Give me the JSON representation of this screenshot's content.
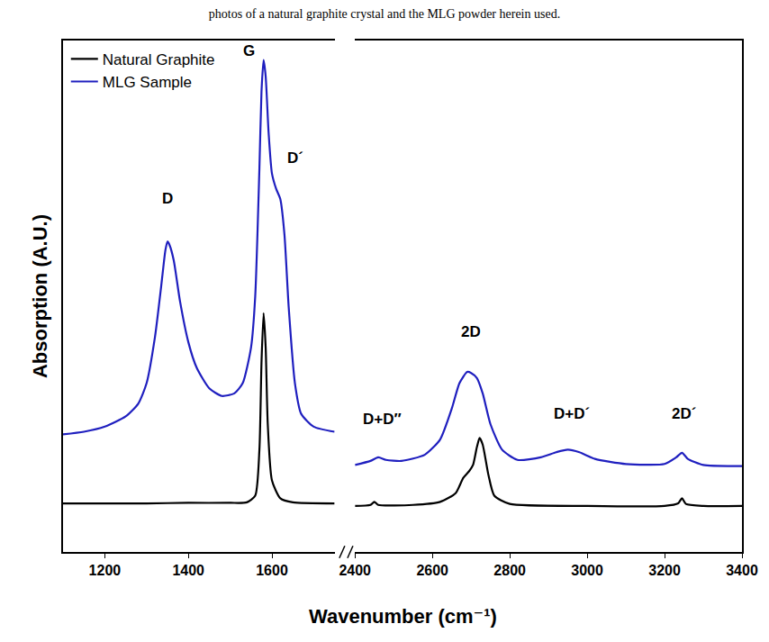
{
  "chart_data": {
    "type": "line",
    "title": "photos of a natural graphite crystal and the MLG powder herein used.",
    "x_label": "Wavenumber (cm⁻¹)",
    "y_label": "Absorption (A.U.)",
    "xlim": [
      [
        1100,
        1750
      ],
      [
        2400,
        3400
      ]
    ],
    "xticks": [
      [
        1200,
        1400,
        1600
      ],
      [
        2400,
        2600,
        2800,
        3000,
        3200,
        3400
      ]
    ],
    "ylim": [
      0,
      1
    ],
    "tick_labels": "x",
    "grid": false,
    "legend": "upper left",
    "series": [
      {
        "name": "Natural Graphite",
        "color": "#000000",
        "x": [
          1100,
          1200,
          1300,
          1400,
          1500,
          1540,
          1560,
          1570,
          1575,
          1580,
          1585,
          1590,
          1600,
          1620,
          1650,
          1750,
          2400,
          2440,
          2450,
          2460,
          2550,
          2620,
          2660,
          2680,
          2695,
          2705,
          2715,
          2722,
          2730,
          2745,
          2760,
          2800,
          3000,
          3200,
          3235,
          3245,
          3255,
          3300,
          3400
        ],
        "values": [
          0.095,
          0.095,
          0.095,
          0.096,
          0.096,
          0.097,
          0.11,
          0.2,
          0.37,
          0.467,
          0.4,
          0.25,
          0.14,
          0.105,
          0.097,
          0.095,
          0.09,
          0.092,
          0.098,
          0.092,
          0.092,
          0.098,
          0.115,
          0.145,
          0.158,
          0.17,
          0.205,
          0.223,
          0.21,
          0.15,
          0.11,
          0.094,
          0.09,
          0.09,
          0.095,
          0.105,
          0.094,
          0.09,
          0.09
        ]
      },
      {
        "name": "MLG Sample",
        "color": "#1f1fbf",
        "x": [
          1100,
          1150,
          1200,
          1250,
          1280,
          1300,
          1320,
          1335,
          1345,
          1350,
          1355,
          1365,
          1380,
          1400,
          1420,
          1450,
          1480,
          1510,
          1530,
          1550,
          1560,
          1570,
          1575,
          1580,
          1585,
          1592,
          1600,
          1610,
          1620,
          1630,
          1640,
          1655,
          1670,
          1700,
          1750,
          2400,
          2440,
          2460,
          2480,
          2520,
          2580,
          2620,
          2650,
          2670,
          2690,
          2700,
          2715,
          2730,
          2750,
          2780,
          2820,
          2880,
          2920,
          2950,
          2980,
          3020,
          3100,
          3200,
          3230,
          3245,
          3260,
          3300,
          3400
        ],
        "values": [
          0.23,
          0.235,
          0.245,
          0.265,
          0.29,
          0.33,
          0.42,
          0.52,
          0.59,
          0.607,
          0.6,
          0.57,
          0.49,
          0.41,
          0.36,
          0.32,
          0.305,
          0.31,
          0.33,
          0.4,
          0.5,
          0.75,
          0.9,
          0.962,
          0.93,
          0.82,
          0.74,
          0.71,
          0.69,
          0.62,
          0.48,
          0.33,
          0.27,
          0.245,
          0.235,
          0.17,
          0.178,
          0.185,
          0.18,
          0.178,
          0.19,
          0.22,
          0.28,
          0.33,
          0.352,
          0.35,
          0.34,
          0.31,
          0.25,
          0.2,
          0.18,
          0.185,
          0.195,
          0.2,
          0.195,
          0.182,
          0.172,
          0.172,
          0.185,
          0.194,
          0.182,
          0.17,
          0.168
        ]
      }
    ],
    "annotations": [
      {
        "text": "D",
        "x": 1350,
        "y": 0.67
      },
      {
        "text": "G",
        "x": 1545,
        "y": 0.96
      },
      {
        "text": "D´",
        "x": 1655,
        "y": 0.75
      },
      {
        "text": "D+D″",
        "x": 2470,
        "y": 0.24
      },
      {
        "text": "2D",
        "x": 2700,
        "y": 0.41
      },
      {
        "text": "D+D´",
        "x": 2960,
        "y": 0.25
      },
      {
        "text": "2D´",
        "x": 3250,
        "y": 0.25
      }
    ]
  }
}
